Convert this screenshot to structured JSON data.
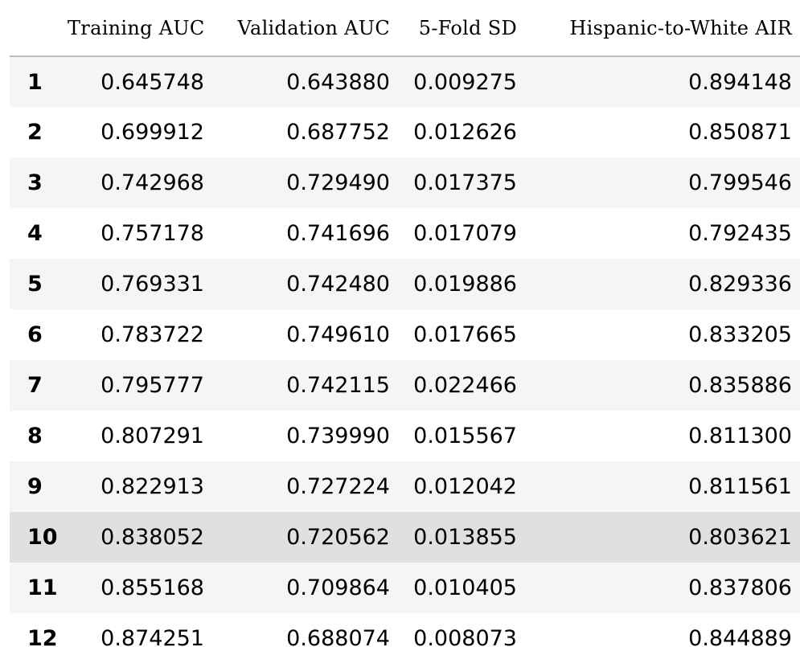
{
  "table": {
    "columns": [
      "",
      "Training AUC",
      "Validation AUC",
      "5-Fold SD",
      "Hispanic-to-White AIR"
    ],
    "rows": [
      {
        "index": "1",
        "cells": [
          "0.645748",
          "0.643880",
          "0.009275",
          "0.894148"
        ]
      },
      {
        "index": "2",
        "cells": [
          "0.699912",
          "0.687752",
          "0.012626",
          "0.850871"
        ]
      },
      {
        "index": "3",
        "cells": [
          "0.742968",
          "0.729490",
          "0.017375",
          "0.799546"
        ]
      },
      {
        "index": "4",
        "cells": [
          "0.757178",
          "0.741696",
          "0.017079",
          "0.792435"
        ]
      },
      {
        "index": "5",
        "cells": [
          "0.769331",
          "0.742480",
          "0.019886",
          "0.829336"
        ]
      },
      {
        "index": "6",
        "cells": [
          "0.783722",
          "0.749610",
          "0.017665",
          "0.833205"
        ]
      },
      {
        "index": "7",
        "cells": [
          "0.795777",
          "0.742115",
          "0.022466",
          "0.835886"
        ]
      },
      {
        "index": "8",
        "cells": [
          "0.807291",
          "0.739990",
          "0.015567",
          "0.811300"
        ]
      },
      {
        "index": "9",
        "cells": [
          "0.822913",
          "0.727224",
          "0.012042",
          "0.811561"
        ]
      },
      {
        "index": "10",
        "cells": [
          "0.838052",
          "0.720562",
          "0.013855",
          "0.803621"
        ]
      },
      {
        "index": "11",
        "cells": [
          "0.855168",
          "0.709864",
          "0.010405",
          "0.837806"
        ]
      },
      {
        "index": "12",
        "cells": [
          "0.874251",
          "0.688074",
          "0.008073",
          "0.844889"
        ]
      }
    ],
    "highlighted_row": "10"
  },
  "colors": {
    "stripe": "#f5f5f5",
    "highlight": "#e0e0e0",
    "header_rule": "#bdbdbd"
  }
}
